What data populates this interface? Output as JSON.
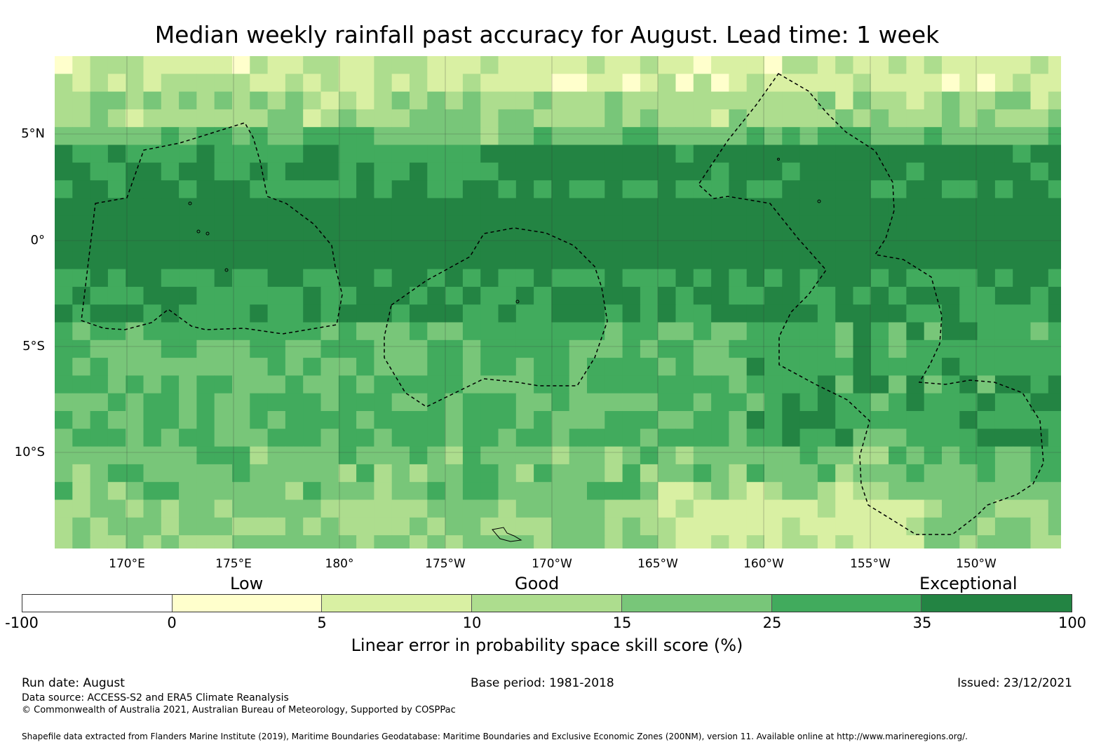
{
  "title": "Median weekly rainfall past accuracy for August. Lead time: 1 week",
  "map": {
    "lat_labels": [
      "5°N",
      "0°",
      "5°S",
      "10°S"
    ],
    "lon_labels": [
      "170°E",
      "175°E",
      "180°",
      "175°W",
      "170°W",
      "165°W",
      "160°W",
      "155°W",
      "150°W"
    ],
    "regions": "Exclusive Economic Zone boundaries (dashed)"
  },
  "legend": {
    "categories": [
      "Low",
      "Good",
      "Exceptional"
    ],
    "ticks": [
      "-100",
      "0",
      "5",
      "10",
      "15",
      "25",
      "35",
      "100"
    ],
    "colors": [
      "#ffffff",
      "#ffffcc",
      "#d9f0a3",
      "#addd8e",
      "#78c679",
      "#41ab5d",
      "#238443"
    ],
    "caption": "Linear error in probability space skill score (%)"
  },
  "footer": {
    "run_date": "Run date: August",
    "base_period": "Base period: 1981-2018",
    "issued": "Issued: 23/12/2021",
    "data_source": "Data source: ACCESS-S2 and ERA5 Climate Reanalysis",
    "copyright": "© Commonwealth of Australia 2021, Australian Bureau of Meteorology, Supported by COSPPac",
    "shapefile": "Shapefile data extracted from Flanders Marine Institute (2019), Maritime Boundaries Geodatabase: Maritime Boundaries and Exclusive Economic Zones (200NM), version 11. Available online at http://www.marineregions.org/."
  }
}
